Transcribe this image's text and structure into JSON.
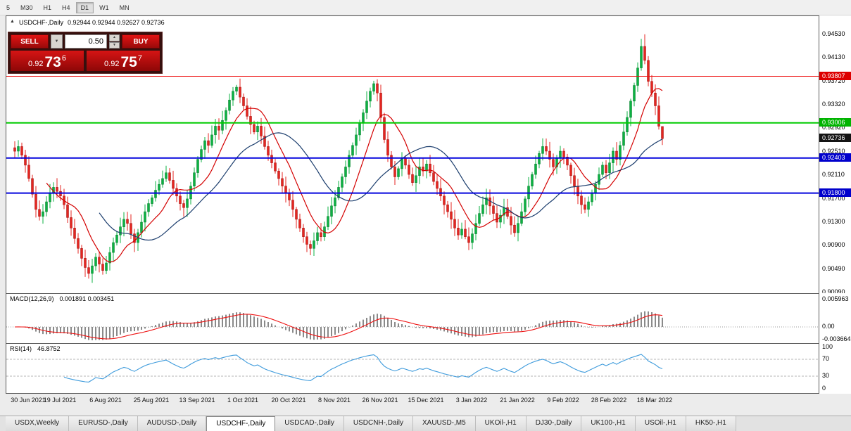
{
  "toolbar": {
    "timeframes": [
      "5",
      "M30",
      "H1",
      "H4",
      "D1",
      "W1",
      "MN"
    ],
    "active": "D1"
  },
  "window": {
    "header": {
      "expand_icon": "▲",
      "title": "USDCHF-,Daily",
      "ohlc_text": "0.92944 0.92944 0.92627 0.92736"
    }
  },
  "trade_panel": {
    "sell_label": "SELL",
    "buy_label": "BUY",
    "volume": "0.50",
    "sell_price": {
      "small": "0.92",
      "big": "73",
      "sup": "6"
    },
    "buy_price": {
      "small": "0.92",
      "big": "75",
      "sup": "7"
    }
  },
  "price_axis": {
    "labels": [
      "0.94530",
      "0.94130",
      "0.93720",
      "0.93320",
      "0.92920",
      "0.92510",
      "0.92110",
      "0.91700",
      "0.91300",
      "0.90900",
      "0.90490",
      "0.90090"
    ],
    "tags": [
      {
        "text": "0.93807",
        "price": 0.93807,
        "bg": "#dd0000"
      },
      {
        "text": "0.93006",
        "price": 0.93006,
        "bg": "#00b400"
      },
      {
        "text": "0.92736",
        "price": 0.92736,
        "bg": "#141414"
      },
      {
        "text": "0.92403",
        "price": 0.92403,
        "bg": "#0000cc"
      },
      {
        "text": "0.91800",
        "price": 0.918,
        "bg": "#0000cc"
      }
    ]
  },
  "macd_panel": {
    "title": "MACD(12,26,9)",
    "values_text": "0.001891 0.003451",
    "axis_labels": [
      {
        "text": "0.005963"
      },
      {
        "text": "0.00"
      },
      {
        "text": "-0.003664"
      }
    ]
  },
  "rsi_panel": {
    "title": "RSI(14)",
    "value": "46.8752",
    "axis_labels": [
      {
        "text": "100",
        "value": 100
      },
      {
        "text": "70",
        "value": 70
      },
      {
        "text": "30",
        "value": 30
      },
      {
        "text": "0",
        "value": 0
      }
    ],
    "levels": [
      70,
      30
    ]
  },
  "date_axis": {
    "step": 13,
    "labels": [
      "30 Jun 2021",
      "19 Jul 2021",
      "6 Aug 2021",
      "25 Aug 2021",
      "13 Sep 2021",
      "1 Oct 2021",
      "20 Oct 2021",
      "8 Nov 2021",
      "26 Nov 2021",
      "15 Dec 2021",
      "3 Jan 2022",
      "21 Jan 2022",
      "9 Feb 2022",
      "28 Feb 2022",
      "18 Mar 2022"
    ]
  },
  "tabs": [
    {
      "label": "USDX,Weekly"
    },
    {
      "label": "EURUSD-,Daily"
    },
    {
      "label": "AUDUSD-,Daily"
    },
    {
      "label": "USDCHF-,Daily",
      "active": true
    },
    {
      "label": "USDCAD-,Daily"
    },
    {
      "label": "USDCNH-,Daily"
    },
    {
      "label": "XAUUSD-,M5"
    },
    {
      "label": "UKOil-,H1"
    },
    {
      "label": "DJ30-,Daily"
    },
    {
      "label": "UK100-,H1"
    },
    {
      "label": "USOil-,H1"
    },
    {
      "label": "HK50-,H1"
    }
  ],
  "colors": {
    "up": "#0cb143",
    "up_dark": "#067a2b",
    "down": "#e42620",
    "down_dark": "#9d0f0f",
    "ma_fast": "#d40000",
    "ma_slow": "#1b3d6d",
    "hline_red": "#ee1111",
    "hline_green": "#00cc00",
    "hline_blue": "#0202dd",
    "macd_hist": "#8a8a8a",
    "macd_signal": "#ee1111",
    "rsi_line": "#3e9bdc"
  },
  "chart_data": {
    "type": "candlestick",
    "symbol": "USDCHF",
    "timeframe": "Daily",
    "title": "USDCHF-,Daily",
    "ohlc_current": {
      "open": 0.92944,
      "high": 0.92944,
      "low": 0.92627,
      "close": 0.92736
    },
    "price_range": [
      0.9008,
      0.9484
    ],
    "closes": [
      0.9252,
      0.926,
      0.9245,
      0.9228,
      0.9205,
      0.9178,
      0.9152,
      0.914,
      0.9148,
      0.9165,
      0.918,
      0.919,
      0.9183,
      0.9175,
      0.916,
      0.9138,
      0.912,
      0.9102,
      0.9085,
      0.9068,
      0.9052,
      0.9042,
      0.9055,
      0.907,
      0.9058,
      0.9047,
      0.906,
      0.9078,
      0.9095,
      0.9108,
      0.9122,
      0.9135,
      0.9128,
      0.911,
      0.9095,
      0.9112,
      0.913,
      0.9148,
      0.9162,
      0.9172,
      0.9185,
      0.9195,
      0.9205,
      0.9215,
      0.9202,
      0.9188,
      0.9175,
      0.9162,
      0.9155,
      0.917,
      0.9192,
      0.9215,
      0.9238,
      0.9255,
      0.927,
      0.9262,
      0.928,
      0.9295,
      0.9288,
      0.9305,
      0.9322,
      0.934,
      0.9355,
      0.9362,
      0.9345,
      0.933,
      0.9312,
      0.9298,
      0.9285,
      0.9295,
      0.9278,
      0.926,
      0.9245,
      0.9232,
      0.9218,
      0.9205,
      0.9192,
      0.918,
      0.9168,
      0.9152,
      0.9135,
      0.912,
      0.9105,
      0.9092,
      0.9085,
      0.9098,
      0.9112,
      0.9105,
      0.9122,
      0.914,
      0.9158,
      0.9172,
      0.919,
      0.9208,
      0.9225,
      0.9245,
      0.9262,
      0.928,
      0.93,
      0.9318,
      0.9338,
      0.9355,
      0.9368,
      0.9352,
      0.931,
      0.9272,
      0.9245,
      0.9225,
      0.9208,
      0.9222,
      0.924,
      0.9228,
      0.9212,
      0.9198,
      0.921,
      0.9225,
      0.9218,
      0.923,
      0.9215,
      0.92,
      0.9188,
      0.9175,
      0.916,
      0.9148,
      0.9135,
      0.912,
      0.9108,
      0.9118,
      0.9105,
      0.9095,
      0.911,
      0.9128,
      0.9145,
      0.916,
      0.9172,
      0.9158,
      0.9145,
      0.913,
      0.9142,
      0.9155,
      0.914,
      0.9125,
      0.9112,
      0.9128,
      0.9148,
      0.917,
      0.9192,
      0.9212,
      0.923,
      0.9248,
      0.926,
      0.9252,
      0.9238,
      0.9225,
      0.924,
      0.9252,
      0.9242,
      0.9228,
      0.921,
      0.9192,
      0.9175,
      0.916,
      0.9152,
      0.9165,
      0.918,
      0.9195,
      0.9212,
      0.9228,
      0.9215,
      0.9232,
      0.9252,
      0.9238,
      0.9262,
      0.9285,
      0.931,
      0.9338,
      0.9365,
      0.9395,
      0.9432,
      0.9408,
      0.9372,
      0.9352,
      0.933,
      0.9295,
      0.92736
    ],
    "special_high": {
      "index": 179,
      "value": 0.9453
    },
    "special_low": {
      "index": 21,
      "value": 0.9033
    },
    "hlines": [
      {
        "price": 0.93807,
        "color": "red",
        "width": 1
      },
      {
        "price": 0.93006,
        "color": "green",
        "width": 2
      },
      {
        "price": 0.92403,
        "color": "blue",
        "width": 2
      },
      {
        "price": 0.918,
        "color": "blue",
        "width": 2
      }
    ],
    "overlays": [
      {
        "name": "ma-fast",
        "period": 10
      },
      {
        "name": "ma-slow",
        "period": 25
      }
    ],
    "indicators": [
      {
        "name": "MACD",
        "params": [
          12,
          26,
          9
        ],
        "current": [
          0.001891,
          0.003451
        ],
        "axis": [
          0.005963,
          0,
          -0.003664
        ]
      },
      {
        "name": "RSI",
        "params": [
          14
        ],
        "current": 46.8752,
        "axis": [
          100,
          70,
          30,
          0
        ]
      }
    ]
  }
}
